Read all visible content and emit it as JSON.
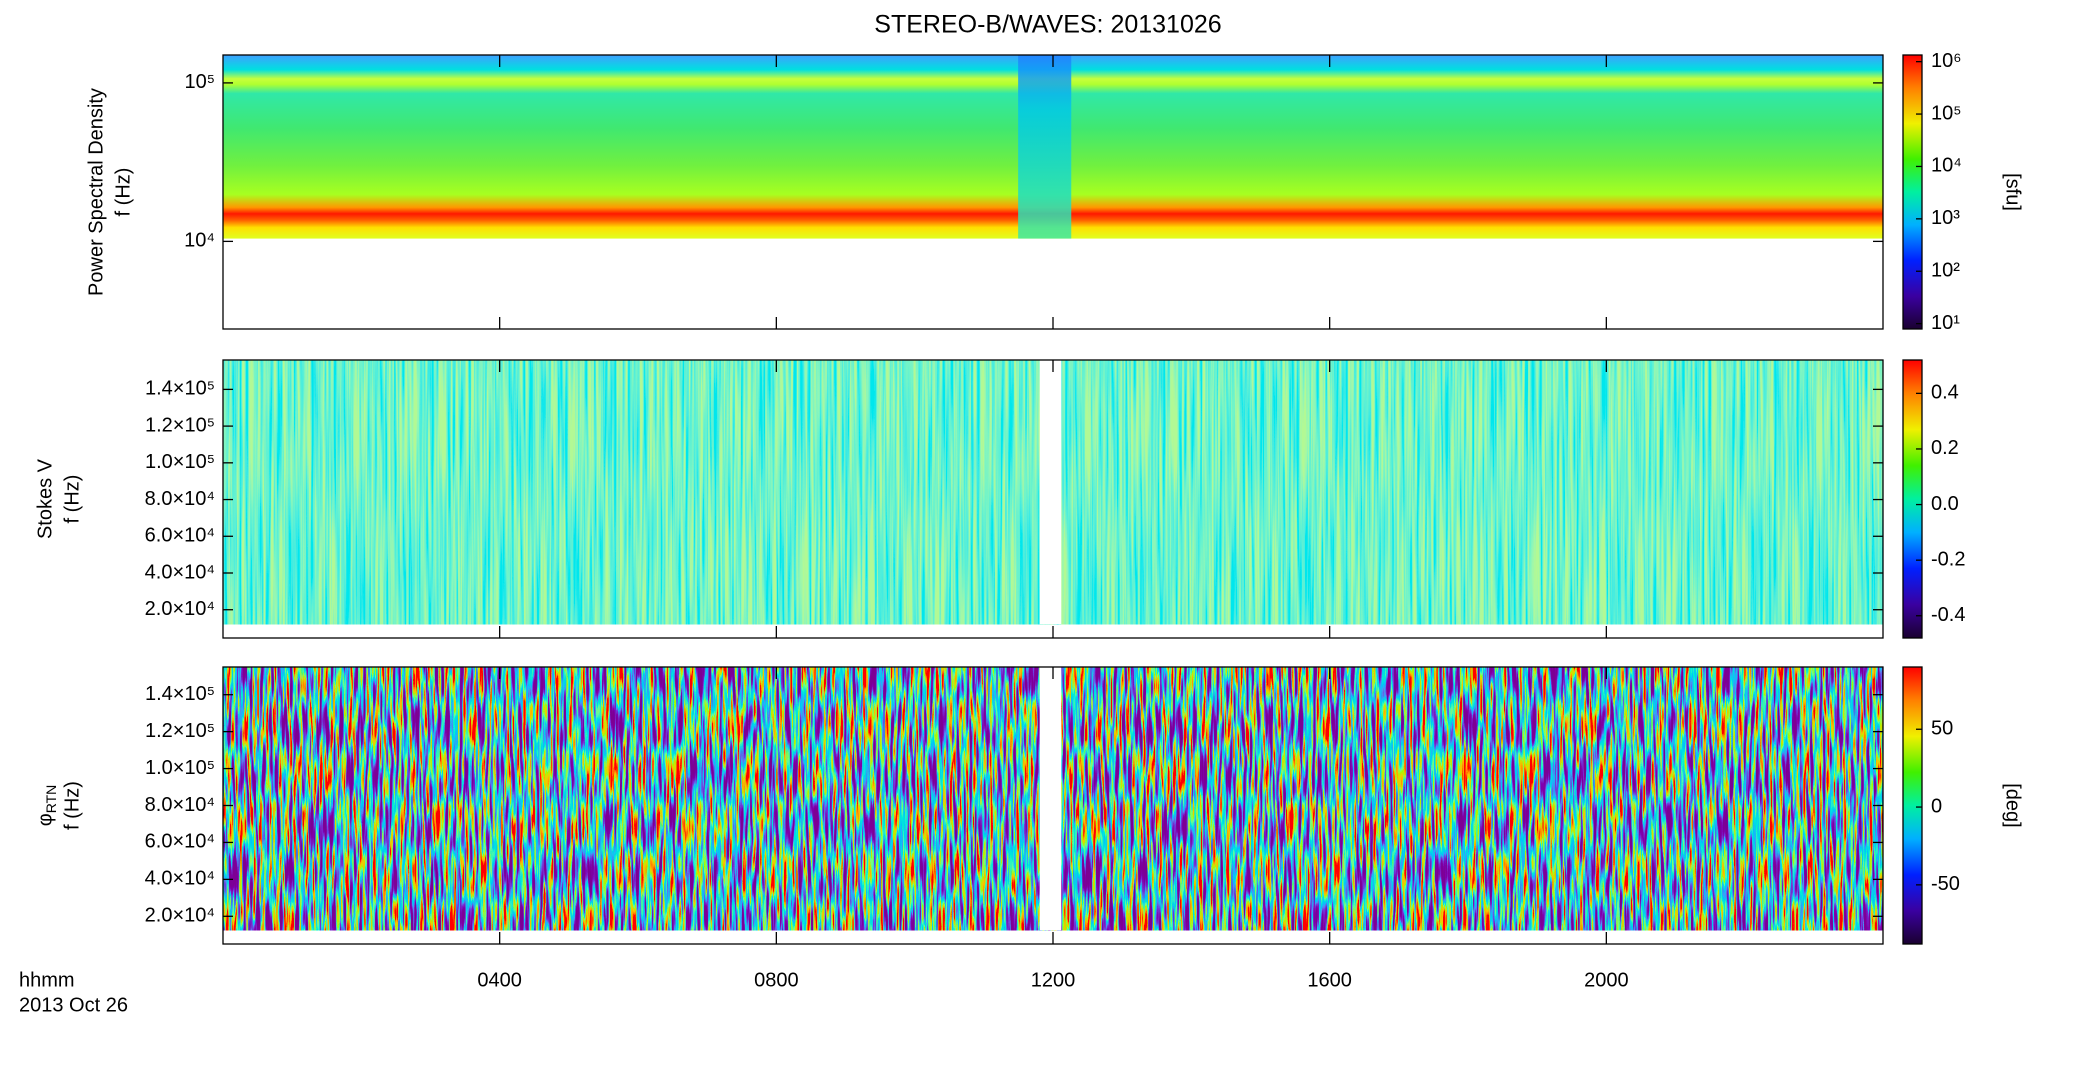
{
  "chart_data": [
    {
      "type": "heatmap",
      "title": "STEREO-B/WAVES: 20131026",
      "ylabel": [
        "Power Spectral Density",
        "f (Hz)"
      ],
      "log": true,
      "ylim": [
        2800,
        150000
      ],
      "yticks": [
        {
          "value": 10000,
          "label": "10⁴"
        },
        {
          "value": 100000,
          "label": "10⁵"
        }
      ],
      "xlim": [
        0,
        24
      ],
      "colorbar": {
        "label": "[sfu]",
        "log": true,
        "zlim": [
          7.9,
          1340000
        ],
        "zticks": [
          {
            "value": 10,
            "label": "10¹"
          },
          {
            "value": 100,
            "label": "10²"
          },
          {
            "value": 1000,
            "label": "10³"
          },
          {
            "value": 10000,
            "label": "10⁴"
          },
          {
            "value": 100000,
            "label": "10⁵"
          },
          {
            "value": 1000000,
            "label": "10⁶"
          }
        ]
      }
    },
    {
      "type": "heatmap",
      "ylabel": [
        "Stokes V",
        "f (Hz)"
      ],
      "log": false,
      "ylim": [
        4600,
        156000
      ],
      "yticks": [
        {
          "value": 20000,
          "label": "2.0×10⁴"
        },
        {
          "value": 40000,
          "label": "4.0×10⁴"
        },
        {
          "value": 60000,
          "label": "6.0×10⁴"
        },
        {
          "value": 80000,
          "label": "8.0×10⁴"
        },
        {
          "value": 100000,
          "label": "1.0×10⁵"
        },
        {
          "value": 120000,
          "label": "1.2×10⁵"
        },
        {
          "value": 140000,
          "label": "1.4×10⁵"
        }
      ],
      "xlim": [
        0,
        24
      ],
      "colorbar": {
        "log": false,
        "zlim": [
          -0.48,
          0.52
        ],
        "zticks": [
          -0.4,
          -0.2,
          {
            "value": 0,
            "label": "0.0"
          },
          0.2,
          0.4
        ]
      }
    },
    {
      "type": "heatmap",
      "ylabel": [
        "φ",
        "f (Hz)"
      ],
      "ylabel_subscript": "RTN",
      "log": false,
      "ylim": [
        5000,
        155000
      ],
      "yticks": [
        {
          "value": 20000,
          "label": "2.0×10⁴"
        },
        {
          "value": 40000,
          "label": "4.0×10⁴"
        },
        {
          "value": 60000,
          "label": "6.0×10⁴"
        },
        {
          "value": 80000,
          "label": "8.0×10⁴"
        },
        {
          "value": 100000,
          "label": "1.0×10⁵"
        },
        {
          "value": 120000,
          "label": "1.2×10⁵"
        },
        {
          "value": 140000,
          "label": "1.4×10⁵"
        }
      ],
      "xlim": [
        0,
        24
      ],
      "xlabel": "hhmm",
      "date": "2013 Oct 26",
      "xticks": [
        {
          "value": 4,
          "label": "0400"
        },
        {
          "value": 8,
          "label": "0800"
        },
        {
          "value": 12,
          "label": "1200"
        },
        {
          "value": 16,
          "label": "1600"
        },
        {
          "value": 20,
          "label": "2000"
        }
      ],
      "colorbar": {
        "label": "[deg]",
        "log": false,
        "zlim": [
          -88,
          90
        ],
        "zticks": [
          -50,
          0,
          50
        ]
      }
    }
  ]
}
